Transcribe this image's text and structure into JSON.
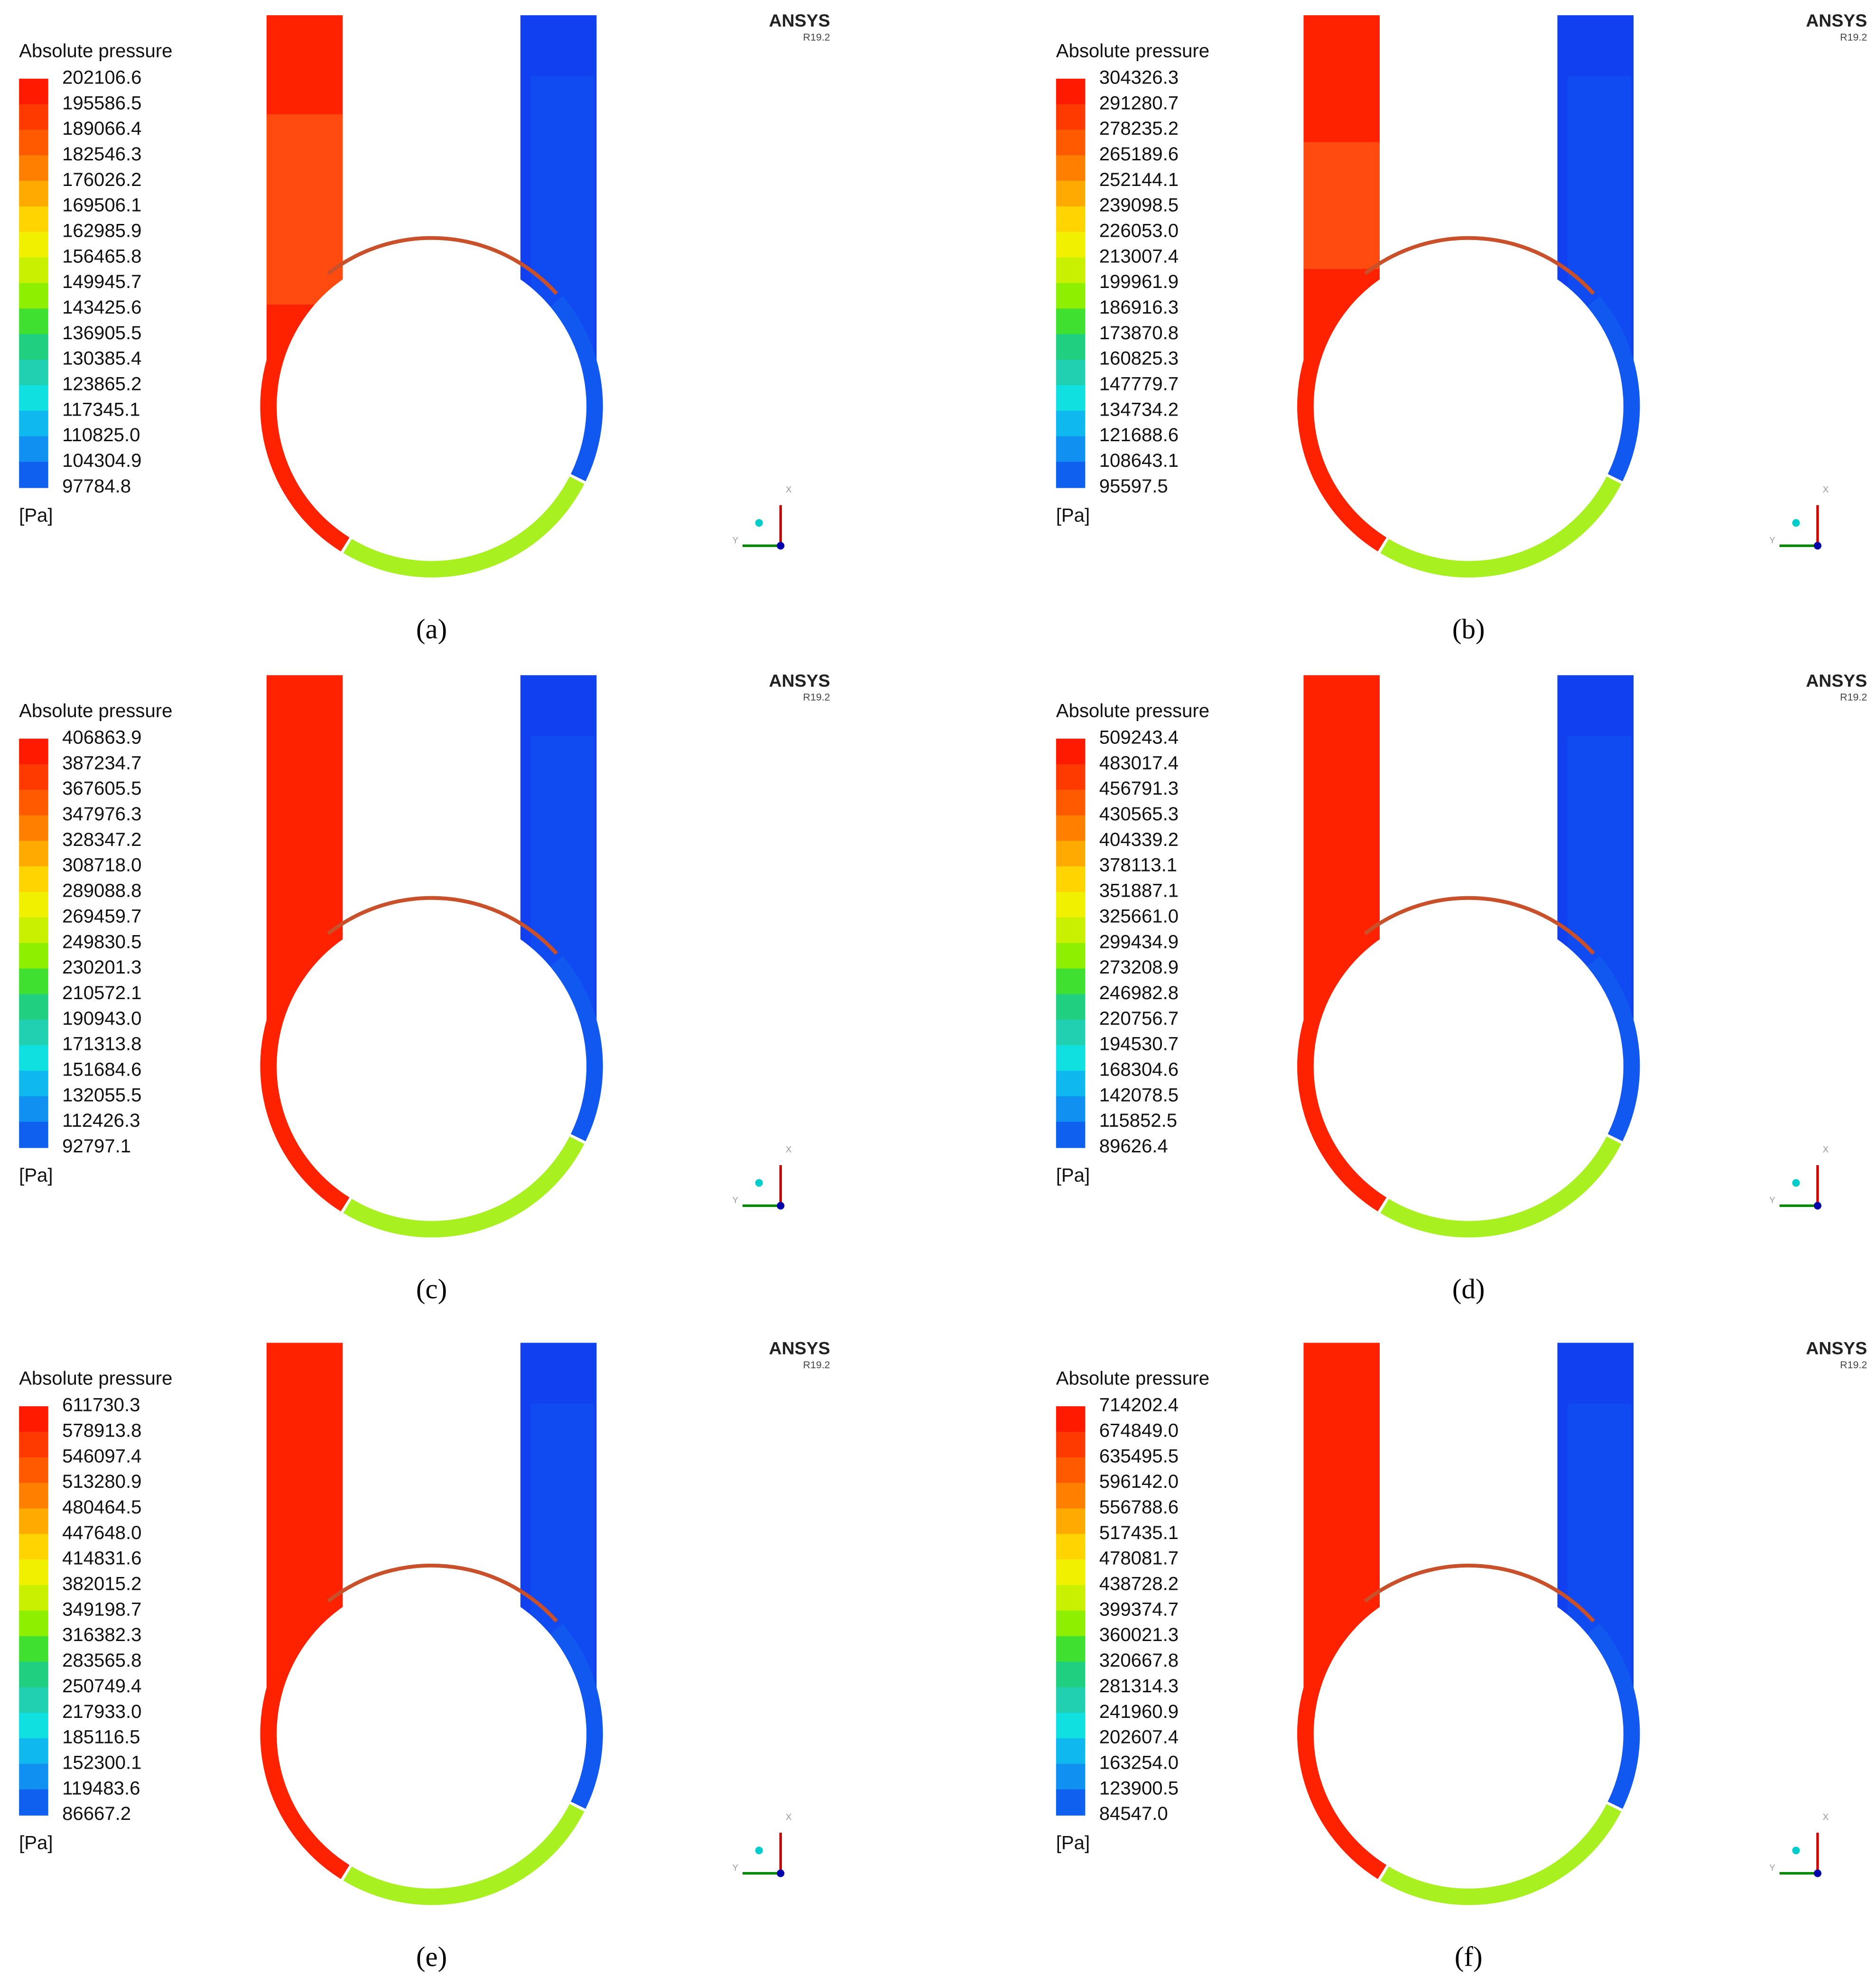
{
  "panels": [
    {
      "label": "(a)",
      "legend": {
        "title": "Absolute pressure",
        "unit": "[Pa]",
        "levels": [
          "202106.6",
          "195586.5",
          "189066.4",
          "182546.3",
          "176026.2",
          "169506.1",
          "162985.9",
          "156465.8",
          "149945.7",
          "143425.6",
          "136905.5",
          "130385.4",
          "123865.2",
          "117345.1",
          "110825.0",
          "104304.9",
          "97784.8"
        ]
      },
      "brand": "ANSYS",
      "version": "R19.2",
      "axes": [
        "X",
        "Y"
      ]
    },
    {
      "label": "(b)",
      "legend": {
        "title": "Absolute pressure",
        "unit": "[Pa]",
        "levels": [
          "304326.3",
          "291280.7",
          "278235.2",
          "265189.6",
          "252144.1",
          "239098.5",
          "226053.0",
          "213007.4",
          "199961.9",
          "186916.3",
          "173870.8",
          "160825.3",
          "147779.7",
          "134734.2",
          "121688.6",
          "108643.1",
          "95597.5"
        ]
      },
      "brand": "ANSYS",
      "version": "R19.2",
      "axes": [
        "X",
        "Y"
      ]
    },
    {
      "label": "(c)",
      "legend": {
        "title": "Absolute pressure",
        "unit": "[Pa]",
        "levels": [
          "406863.9",
          "387234.7",
          "367605.5",
          "347976.3",
          "328347.2",
          "308718.0",
          "289088.8",
          "269459.7",
          "249830.5",
          "230201.3",
          "210572.1",
          "190943.0",
          "171313.8",
          "151684.6",
          "132055.5",
          "112426.3",
          "92797.1"
        ]
      },
      "brand": "ANSYS",
      "version": "R19.2",
      "axes": [
        "X",
        "Y"
      ]
    },
    {
      "label": "(d)",
      "legend": {
        "title": "Absolute pressure",
        "unit": "[Pa]",
        "levels": [
          "509243.4",
          "483017.4",
          "456791.3",
          "430565.3",
          "404339.2",
          "378113.1",
          "351887.1",
          "325661.0",
          "299434.9",
          "273208.9",
          "246982.8",
          "220756.7",
          "194530.7",
          "168304.6",
          "142078.5",
          "115852.5",
          "89626.4"
        ]
      },
      "brand": "ANSYS",
      "version": "R19.2",
      "axes": [
        "X",
        "Y"
      ]
    },
    {
      "label": "(e)",
      "legend": {
        "title": "Absolute pressure",
        "unit": "[Pa]",
        "levels": [
          "611730.3",
          "578913.8",
          "546097.4",
          "513280.9",
          "480464.5",
          "447648.0",
          "414831.6",
          "382015.2",
          "349198.7",
          "316382.3",
          "283565.8",
          "250749.4",
          "217933.0",
          "185116.5",
          "152300.1",
          "119483.6",
          "86667.2"
        ]
      },
      "brand": "ANSYS",
      "version": "R19.2",
      "axes": [
        "X",
        "Y"
      ]
    },
    {
      "label": "(f)",
      "legend": {
        "title": "Absolute pressure",
        "unit": "[Pa]",
        "levels": [
          "714202.4",
          "674849.0",
          "635495.5",
          "596142.0",
          "556788.6",
          "517435.1",
          "478081.7",
          "438728.2",
          "399374.7",
          "360021.3",
          "320667.8",
          "281314.3",
          "241960.9",
          "202607.4",
          "163254.0",
          "123900.5",
          "84547.0"
        ]
      },
      "brand": "ANSYS",
      "version": "R19.2",
      "axes": [
        "X",
        "Y"
      ]
    }
  ]
}
